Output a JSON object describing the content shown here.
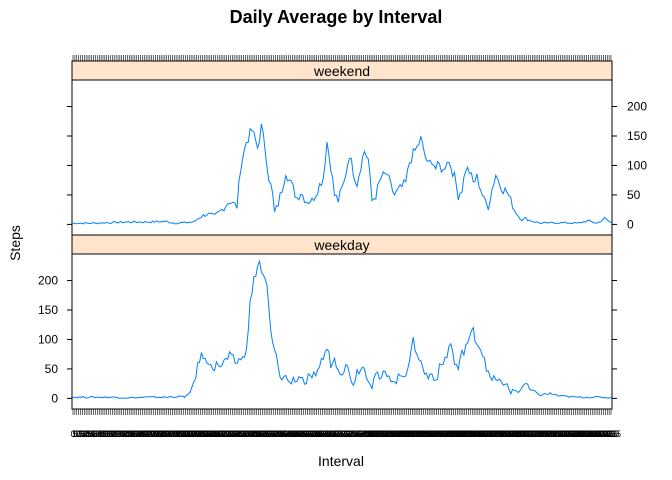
{
  "chart_data": {
    "type": "line",
    "title": "Daily Average by Interval",
    "xlabel": "Interval",
    "ylabel": "Steps",
    "ylim": [
      -18,
      245
    ],
    "yticks": [
      0,
      50,
      100,
      150,
      200
    ],
    "line_color": "#0080ff",
    "strip_color": "#ffe5cc",
    "xlim": [
      0,
      288
    ],
    "x_tick_count": 288,
    "panels": [
      {
        "name": "weekend",
        "keypoints": [
          [
            0,
            2
          ],
          [
            10,
            2
          ],
          [
            20,
            3
          ],
          [
            30,
            4
          ],
          [
            40,
            4
          ],
          [
            50,
            5
          ],
          [
            55,
            2
          ],
          [
            60,
            3
          ],
          [
            65,
            4
          ],
          [
            68,
            12
          ],
          [
            72,
            18
          ],
          [
            76,
            14
          ],
          [
            80,
            25
          ],
          [
            84,
            40
          ],
          [
            88,
            30
          ],
          [
            90,
            100
          ],
          [
            93,
            140
          ],
          [
            96,
            160
          ],
          [
            99,
            130
          ],
          [
            101,
            165
          ],
          [
            103,
            130
          ],
          [
            105,
            80
          ],
          [
            107,
            50
          ],
          [
            108,
            20
          ],
          [
            110,
            35
          ],
          [
            112,
            60
          ],
          [
            114,
            90
          ],
          [
            116,
            75
          ],
          [
            118,
            60
          ],
          [
            120,
            45
          ],
          [
            122,
            55
          ],
          [
            125,
            40
          ],
          [
            128,
            40
          ],
          [
            131,
            60
          ],
          [
            134,
            80
          ],
          [
            136,
            140
          ],
          [
            138,
            100
          ],
          [
            140,
            50
          ],
          [
            142,
            40
          ],
          [
            145,
            70
          ],
          [
            148,
            120
          ],
          [
            150,
            90
          ],
          [
            152,
            70
          ],
          [
            154,
            100
          ],
          [
            156,
            125
          ],
          [
            158,
            110
          ],
          [
            160,
            40
          ],
          [
            162,
            50
          ],
          [
            165,
            80
          ],
          [
            168,
            85
          ],
          [
            170,
            65
          ],
          [
            172,
            50
          ],
          [
            175,
            60
          ],
          [
            178,
            70
          ],
          [
            180,
            105
          ],
          [
            182,
            120
          ],
          [
            184,
            130
          ],
          [
            186,
            145
          ],
          [
            188,
            120
          ],
          [
            190,
            100
          ],
          [
            192,
            110
          ],
          [
            194,
            95
          ],
          [
            196,
            100
          ],
          [
            198,
            90
          ],
          [
            200,
            110
          ],
          [
            202,
            100
          ],
          [
            204,
            80
          ],
          [
            206,
            50
          ],
          [
            208,
            60
          ],
          [
            210,
            95
          ],
          [
            212,
            90
          ],
          [
            214,
            70
          ],
          [
            216,
            80
          ],
          [
            218,
            60
          ],
          [
            220,
            40
          ],
          [
            222,
            30
          ],
          [
            224,
            60
          ],
          [
            226,
            85
          ],
          [
            228,
            70
          ],
          [
            230,
            60
          ],
          [
            232,
            55
          ],
          [
            234,
            40
          ],
          [
            236,
            25
          ],
          [
            238,
            15
          ],
          [
            240,
            8
          ],
          [
            242,
            10
          ],
          [
            245,
            6
          ],
          [
            250,
            2
          ],
          [
            260,
            3
          ],
          [
            270,
            2
          ],
          [
            275,
            6
          ],
          [
            280,
            2
          ],
          [
            284,
            10
          ],
          [
            288,
            2
          ]
        ]
      },
      {
        "name": "weekday",
        "keypoints": [
          [
            0,
            2
          ],
          [
            10,
            2
          ],
          [
            20,
            2
          ],
          [
            30,
            1
          ],
          [
            40,
            2
          ],
          [
            50,
            2
          ],
          [
            55,
            3
          ],
          [
            60,
            3
          ],
          [
            63,
            8
          ],
          [
            66,
            40
          ],
          [
            68,
            65
          ],
          [
            70,
            75
          ],
          [
            72,
            55
          ],
          [
            74,
            65
          ],
          [
            76,
            50
          ],
          [
            78,
            60
          ],
          [
            80,
            55
          ],
          [
            82,
            65
          ],
          [
            84,
            70
          ],
          [
            86,
            65
          ],
          [
            88,
            60
          ],
          [
            90,
            70
          ],
          [
            92,
            65
          ],
          [
            93,
            90
          ],
          [
            95,
            160
          ],
          [
            97,
            200
          ],
          [
            99,
            225
          ],
          [
            100,
            230
          ],
          [
            102,
            205
          ],
          [
            104,
            190
          ],
          [
            106,
            110
          ],
          [
            108,
            80
          ],
          [
            110,
            55
          ],
          [
            112,
            30
          ],
          [
            114,
            40
          ],
          [
            116,
            25
          ],
          [
            118,
            35
          ],
          [
            120,
            30
          ],
          [
            122,
            40
          ],
          [
            124,
            20
          ],
          [
            126,
            35
          ],
          [
            128,
            30
          ],
          [
            130,
            45
          ],
          [
            132,
            55
          ],
          [
            134,
            70
          ],
          [
            136,
            85
          ],
          [
            138,
            60
          ],
          [
            140,
            65
          ],
          [
            142,
            55
          ],
          [
            144,
            45
          ],
          [
            146,
            60
          ],
          [
            148,
            40
          ],
          [
            150,
            25
          ],
          [
            152,
            45
          ],
          [
            154,
            55
          ],
          [
            156,
            50
          ],
          [
            158,
            35
          ],
          [
            160,
            20
          ],
          [
            162,
            45
          ],
          [
            164,
            30
          ],
          [
            166,
            40
          ],
          [
            168,
            45
          ],
          [
            170,
            35
          ],
          [
            172,
            25
          ],
          [
            174,
            35
          ],
          [
            176,
            40
          ],
          [
            178,
            45
          ],
          [
            180,
            65
          ],
          [
            182,
            95
          ],
          [
            184,
            80
          ],
          [
            186,
            60
          ],
          [
            188,
            45
          ],
          [
            190,
            35
          ],
          [
            192,
            45
          ],
          [
            194,
            30
          ],
          [
            196,
            50
          ],
          [
            198,
            60
          ],
          [
            200,
            75
          ],
          [
            202,
            95
          ],
          [
            204,
            60
          ],
          [
            206,
            50
          ],
          [
            208,
            75
          ],
          [
            210,
            90
          ],
          [
            212,
            100
          ],
          [
            214,
            115
          ],
          [
            216,
            95
          ],
          [
            218,
            85
          ],
          [
            220,
            70
          ],
          [
            222,
            40
          ],
          [
            224,
            30
          ],
          [
            226,
            35
          ],
          [
            228,
            30
          ],
          [
            230,
            20
          ],
          [
            232,
            25
          ],
          [
            234,
            10
          ],
          [
            236,
            15
          ],
          [
            238,
            10
          ],
          [
            240,
            20
          ],
          [
            242,
            25
          ],
          [
            244,
            15
          ],
          [
            246,
            12
          ],
          [
            248,
            8
          ],
          [
            250,
            6
          ],
          [
            255,
            8
          ],
          [
            260,
            4
          ],
          [
            265,
            3
          ],
          [
            270,
            2
          ],
          [
            280,
            2
          ],
          [
            288,
            1
          ]
        ]
      }
    ]
  }
}
